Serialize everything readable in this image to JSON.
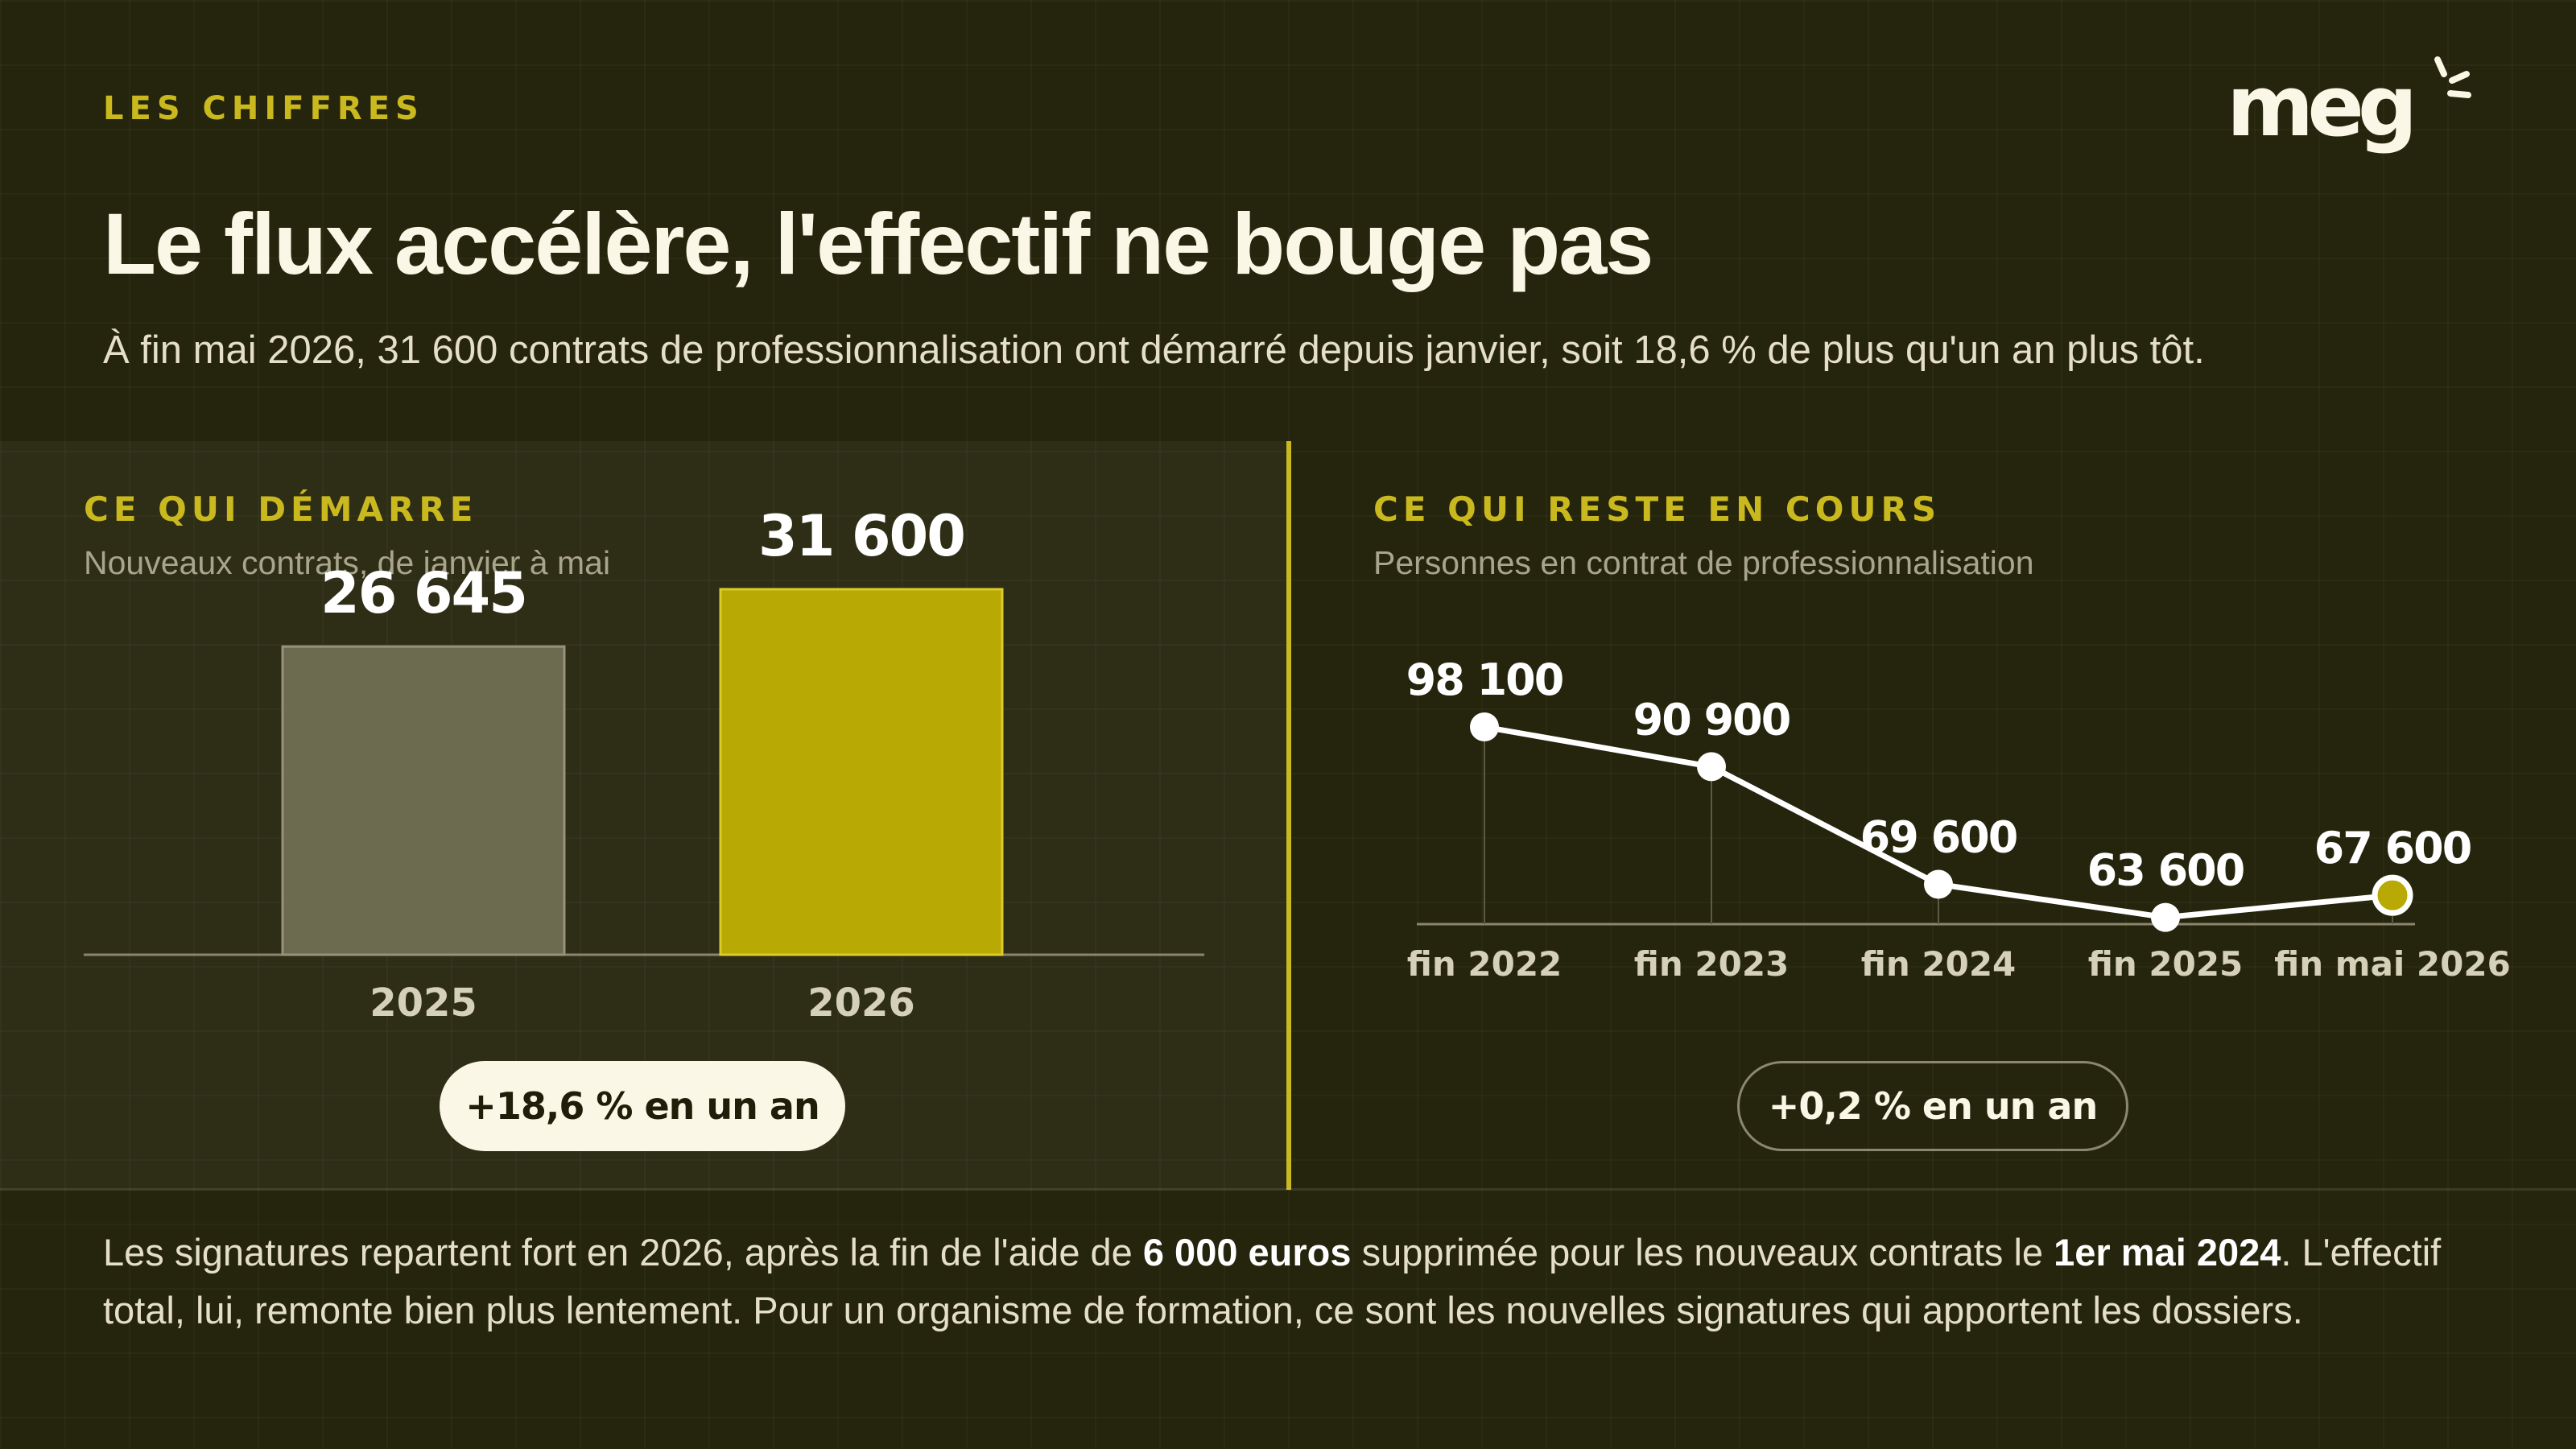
{
  "header": {
    "kicker": "LES CHIFFRES",
    "logo": "meg",
    "title": "Le flux accélère, l'effectif ne bouge pas",
    "subtitle": "À fin mai 2026, 31 600 contrats de professionnalisation ont démarré depuis janvier, soit 18,6 % de plus qu'un an plus tôt."
  },
  "left_panel": {
    "title": "CE QUI DÉMARRE",
    "subtitle": "Nouveaux contrats, de janvier à mai",
    "badge": "+18,6 % en un an"
  },
  "right_panel": {
    "title": "CE QUI RESTE EN COURS",
    "subtitle": "Personnes en contrat de professionnalisation",
    "badge": "+0,2 % en un an"
  },
  "footer": {
    "text_1": "Les signatures repartent fort en 2026, après la fin de l'aide de ",
    "bold_1": "6 000 euros",
    "text_2": " supprimée pour les nouveaux contrats le ",
    "bold_2": "1er mai 2024",
    "text_3": ". L'effectif total, lui, remonte bien plus lentement. Pour un organisme de formation, ce sont les nouvelles signatures qui apportent les dossiers."
  },
  "colors": {
    "background": "#25240c",
    "accent": "#c9b91f",
    "bar_2025": "#6c6a4f",
    "bar_2026": "#b8a904",
    "text": "#fbf7e6"
  },
  "chart_data": [
    {
      "type": "bar",
      "categories": [
        "2025",
        "2026"
      ],
      "values": [
        26645,
        31600
      ],
      "value_labels": [
        "26 645",
        "31 600"
      ],
      "ylim": [
        0,
        38000
      ],
      "grid": false
    },
    {
      "type": "line",
      "categories": [
        "fin 2022",
        "fin 2023",
        "fin 2024",
        "fin 2025",
        "fin mai 2026"
      ],
      "values": [
        98100,
        90900,
        69600,
        63600,
        67600
      ],
      "value_labels": [
        "98 100",
        "90 900",
        "69 600",
        "63 600",
        "67 600"
      ],
      "ylim": [
        58000,
        100000
      ],
      "highlight_last": true,
      "grid": false
    }
  ]
}
